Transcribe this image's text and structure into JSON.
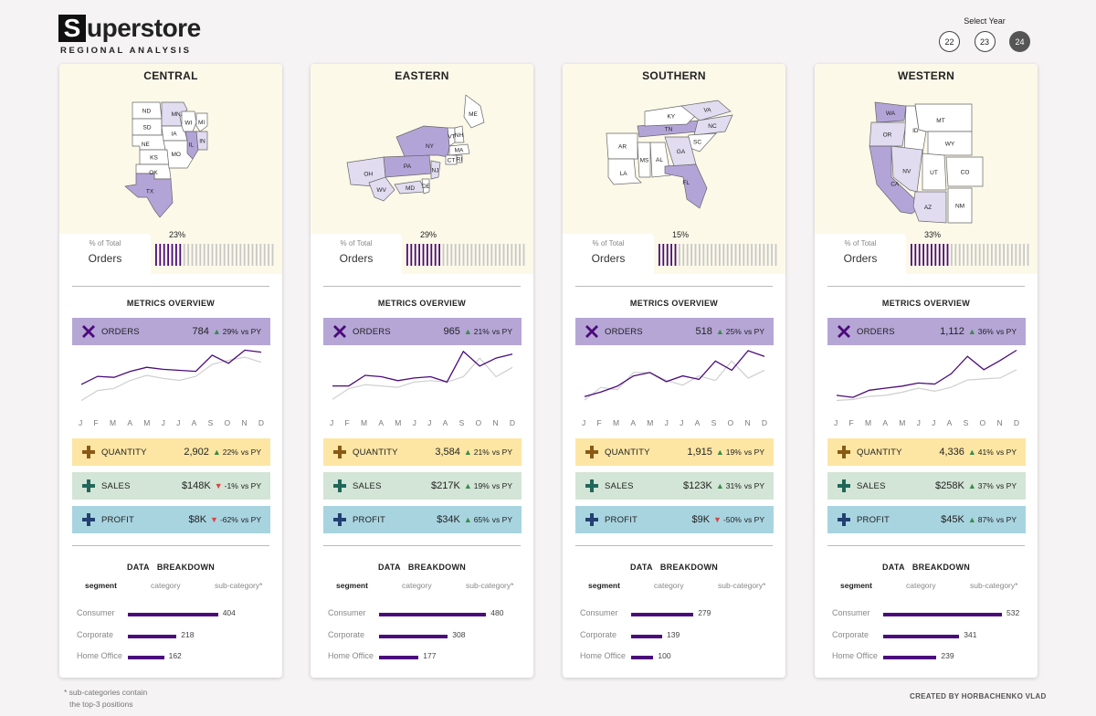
{
  "header": {
    "logo_letter": "S",
    "logo_rest": "uperstore",
    "subtitle": "REGIONAL ANALYSIS"
  },
  "year_select": {
    "label": "Select Year",
    "years": [
      "22",
      "23",
      "24"
    ],
    "selected": "24"
  },
  "labels": {
    "pct_label": "% of Total",
    "pct_metric": "Orders",
    "metrics_title": "METRICS OVERVIEW",
    "breakdown_title": "DATA   BREAKDOWN",
    "vs_py": "vs PY",
    "months": [
      "J",
      "F",
      "M",
      "A",
      "M",
      "J",
      "J",
      "A",
      "S",
      "O",
      "N",
      "D"
    ],
    "bd_tabs": [
      "segment",
      "category",
      "sub-category*"
    ],
    "segments": [
      "Consumer",
      "Corporate",
      "Home Office"
    ]
  },
  "colors": {
    "orders": "#b5a6d6",
    "quantity": "#fde6a4",
    "sales": "#d3e5d6",
    "profit": "#a8d4e0",
    "bar": "#4b0b7a",
    "map_highlight": "#b3a4d8",
    "map_light": "#e1dcf0"
  },
  "regions": [
    {
      "name": "CENTRAL",
      "pct": "23%",
      "pct_value": 0.23,
      "states": [
        "ND",
        "SD",
        "NE",
        "KS",
        "OK",
        "TX",
        "MN",
        "IA",
        "MO",
        "WI",
        "IL",
        "MI",
        "IN"
      ],
      "metrics": {
        "orders": {
          "label": "ORDERS",
          "value": "784",
          "dir": "up",
          "change": "29%"
        },
        "quantity": {
          "label": "QUANTITY",
          "value": "2,902",
          "dir": "up",
          "change": "22%"
        },
        "sales": {
          "label": "SALES",
          "value": "$148K",
          "dir": "down",
          "change": "-1%"
        },
        "profit": {
          "label": "PROFIT",
          "value": "$8K",
          "dir": "down",
          "change": "-62%"
        }
      },
      "spark_current": [
        46,
        54,
        53,
        59,
        63,
        61,
        60,
        59,
        75,
        67,
        80,
        78
      ],
      "spark_previous": [
        30,
        40,
        42,
        50,
        55,
        52,
        50,
        54,
        66,
        70,
        73,
        68
      ],
      "breakdown": [
        404,
        218,
        162
      ]
    },
    {
      "name": "EASTERN",
      "pct": "29%",
      "pct_value": 0.29,
      "states": [
        "ME",
        "VT",
        "NH",
        "NY",
        "MA",
        "CT",
        "RI",
        "PA",
        "NJ",
        "OH",
        "WV",
        "MD",
        "DE"
      ],
      "metrics": {
        "orders": {
          "label": "ORDERS",
          "value": "965",
          "dir": "up",
          "change": "21%"
        },
        "quantity": {
          "label": "QUANTITY",
          "value": "3,584",
          "dir": "up",
          "change": "21%"
        },
        "sales": {
          "label": "SALES",
          "value": "$217K",
          "dir": "up",
          "change": "19%"
        },
        "profit": {
          "label": "PROFIT",
          "value": "$34K",
          "dir": "up",
          "change": "65%"
        }
      },
      "spark_current": [
        40,
        40,
        48,
        47,
        44,
        46,
        47,
        43,
        66,
        55,
        61,
        64
      ],
      "spark_previous": [
        30,
        38,
        41,
        40,
        39,
        43,
        44,
        43,
        47,
        61,
        47,
        54
      ],
      "breakdown": [
        480,
        308,
        177
      ]
    },
    {
      "name": "SOUTHERN",
      "pct": "15%",
      "pct_value": 0.15,
      "states": [
        "AR",
        "LA",
        "MS",
        "AL",
        "TN",
        "KY",
        "VA",
        "NC",
        "SC",
        "GA",
        "FL"
      ],
      "metrics": {
        "orders": {
          "label": "ORDERS",
          "value": "518",
          "dir": "up",
          "change": "25%"
        },
        "quantity": {
          "label": "QUANTITY",
          "value": "1,915",
          "dir": "up",
          "change": "19%"
        },
        "sales": {
          "label": "SALES",
          "value": "$123K",
          "dir": "up",
          "change": "31%"
        },
        "profit": {
          "label": "PROFIT",
          "value": "$9K",
          "dir": "down",
          "change": "-50%"
        }
      },
      "spark_current": [
        20,
        24,
        29,
        38,
        41,
        33,
        38,
        35,
        51,
        43,
        60,
        55
      ],
      "spark_previous": [
        17,
        28,
        26,
        41,
        41,
        34,
        30,
        38,
        34,
        51,
        36,
        43
      ],
      "breakdown": [
        279,
        139,
        100
      ]
    },
    {
      "name": "WESTERN",
      "pct": "33%",
      "pct_value": 0.33,
      "states": [
        "WA",
        "OR",
        "CA",
        "ID",
        "MT",
        "WY",
        "NV",
        "UT",
        "CO",
        "AZ",
        "NM"
      ],
      "metrics": {
        "orders": {
          "label": "ORDERS",
          "value": "1,112",
          "dir": "up",
          "change": "36%"
        },
        "quantity": {
          "label": "QUANTITY",
          "value": "4,336",
          "dir": "up",
          "change": "41%"
        },
        "sales": {
          "label": "SALES",
          "value": "$258K",
          "dir": "up",
          "change": "37%"
        },
        "profit": {
          "label": "PROFIT",
          "value": "$45K",
          "dir": "up",
          "change": "87%"
        }
      },
      "spark_current": [
        40,
        38,
        45,
        47,
        49,
        52,
        51,
        61,
        78,
        65,
        74,
        84
      ],
      "spark_previous": [
        35,
        36,
        39,
        40,
        43,
        47,
        44,
        48,
        55,
        56,
        57,
        65
      ],
      "breakdown": [
        532,
        341,
        239
      ]
    }
  ],
  "footer": {
    "note_line1": "* sub-categories contain",
    "note_line2": "the top-3 positions",
    "credit": "CREATED BY HORBACHENKO VLAD"
  }
}
